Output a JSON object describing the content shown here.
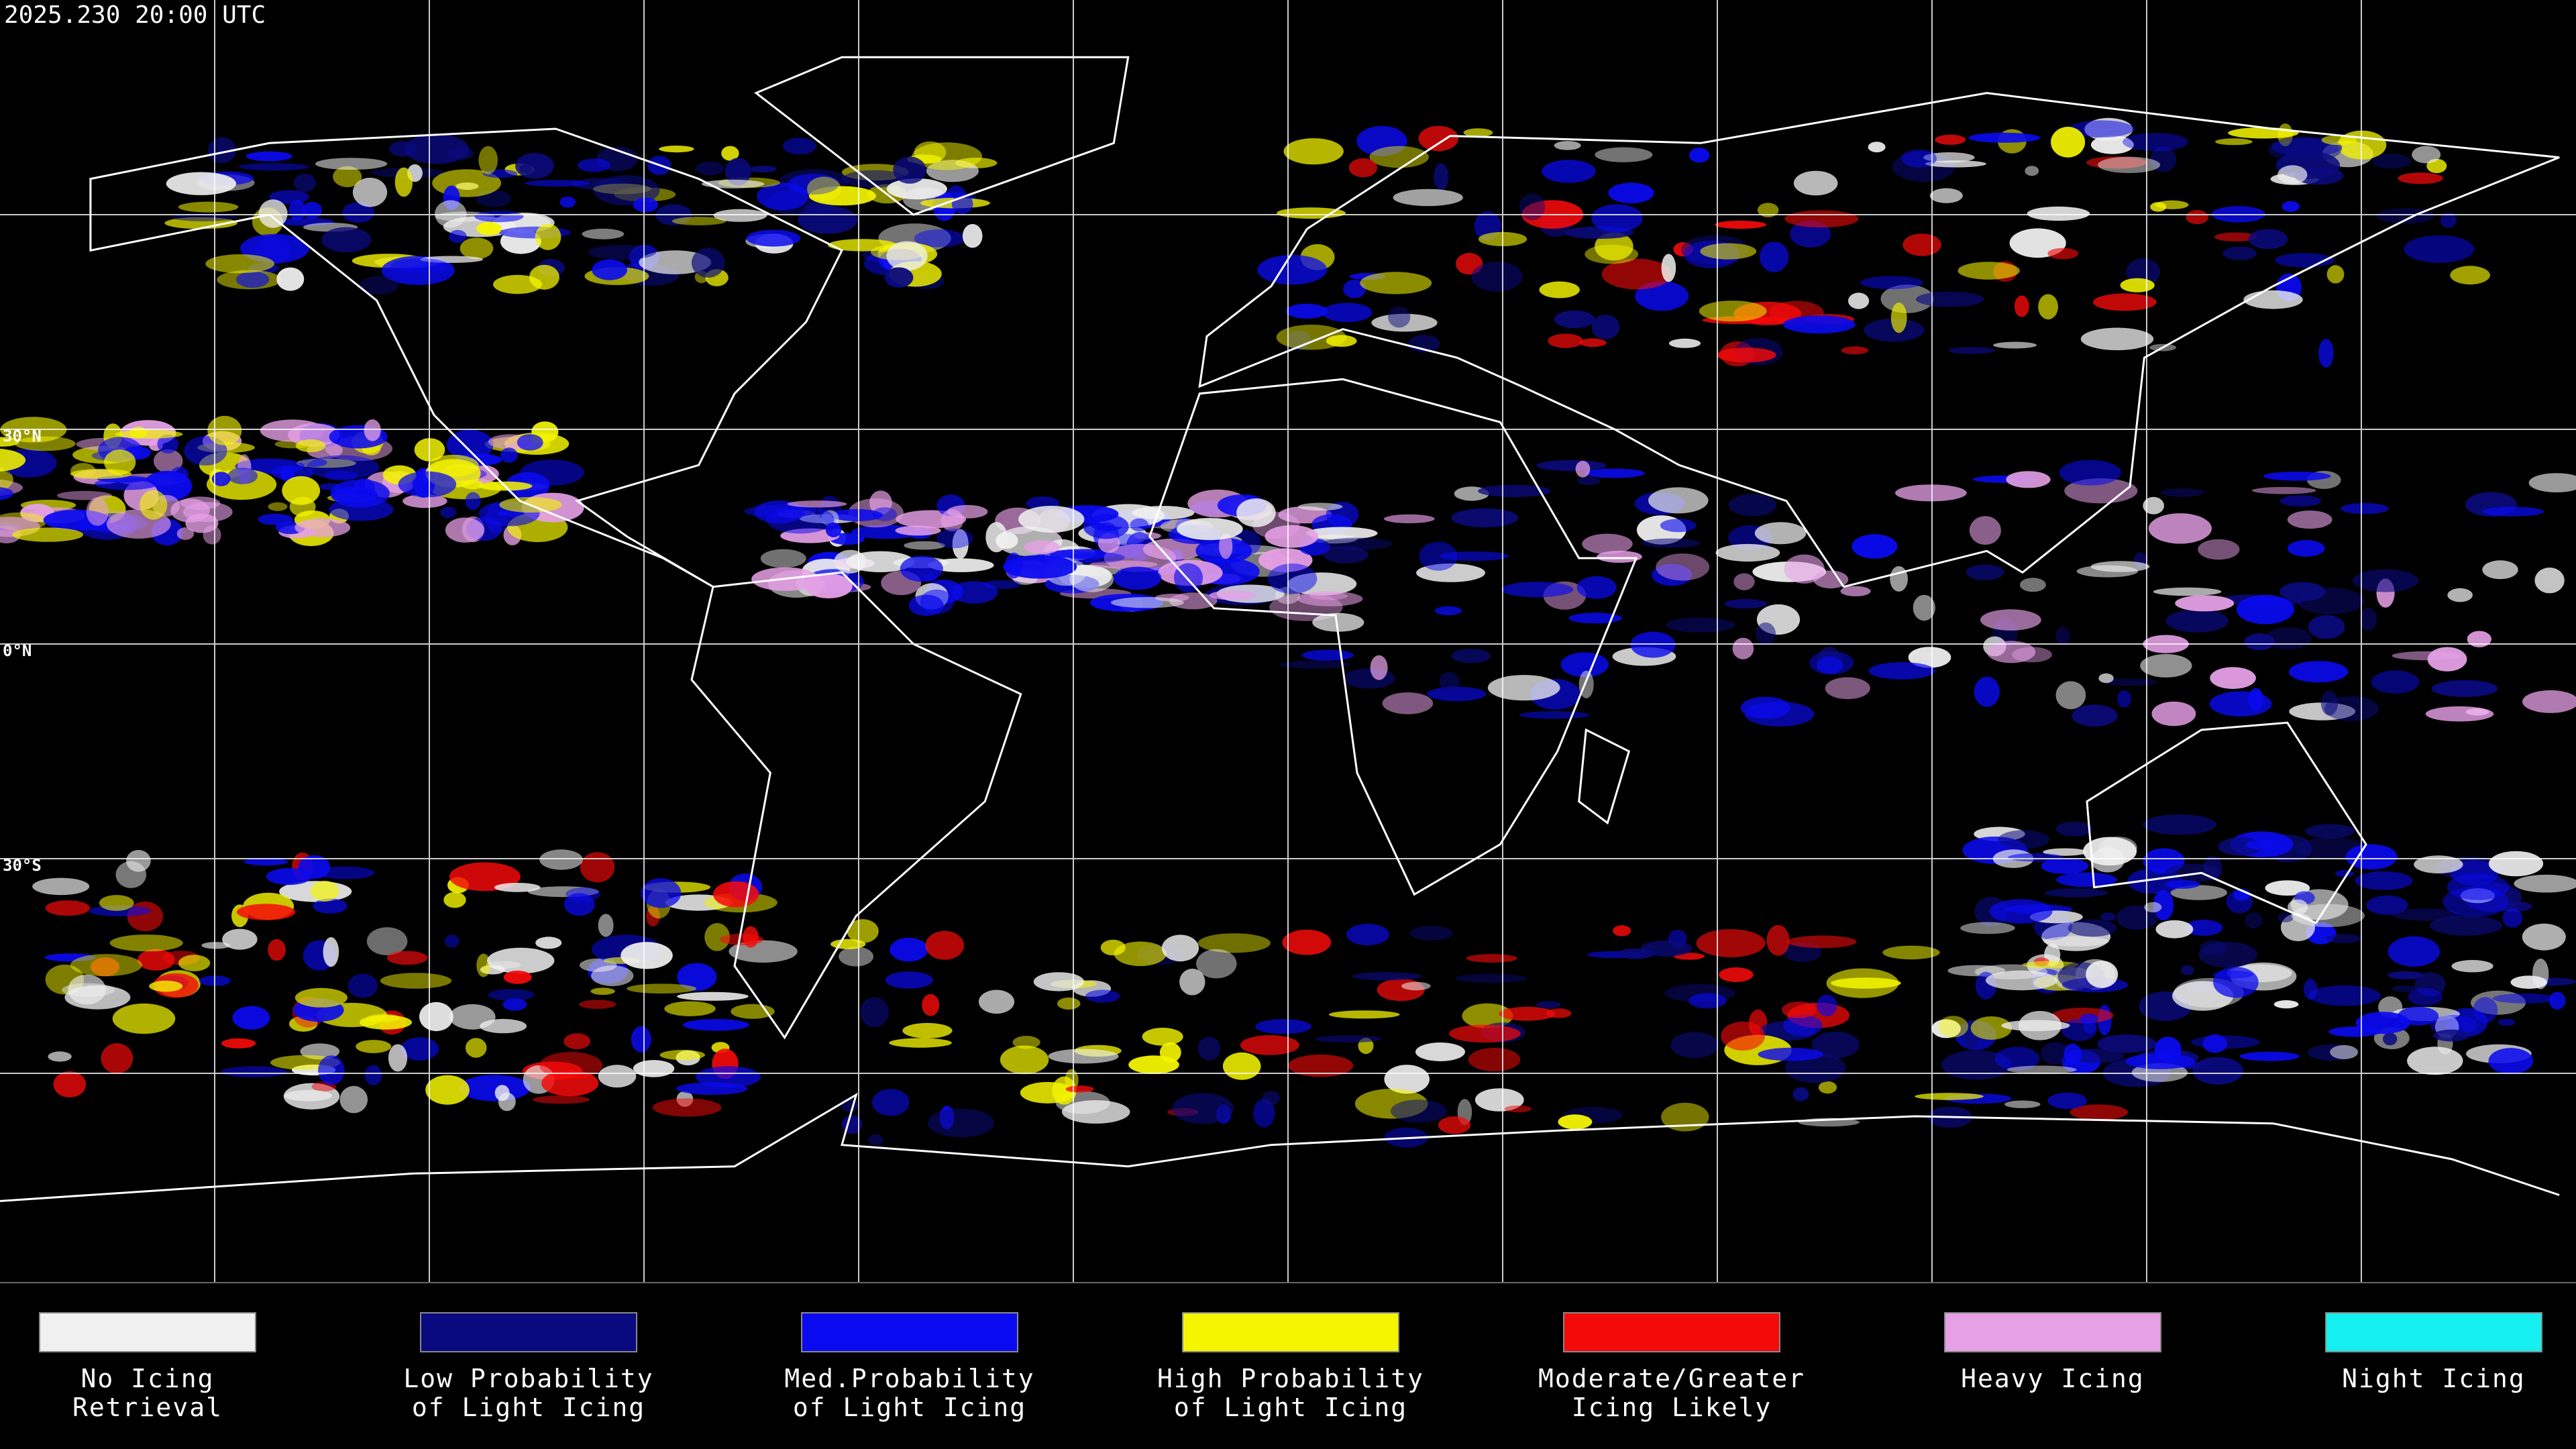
{
  "header": {
    "title": "2025.230 20:00 UTC"
  },
  "latitude_labels": [
    "30°N",
    "0°N",
    "30°S"
  ],
  "legend": [
    {
      "color": "#f0f0f0",
      "label": [
        "No Icing",
        "Retrieval"
      ]
    },
    {
      "color": "#0a0a80",
      "label": [
        "Low Probability",
        "of Light Icing"
      ]
    },
    {
      "color": "#0a0af0",
      "label": [
        "Med.Probability",
        "of Light Icing"
      ]
    },
    {
      "color": "#f5f500",
      "label": [
        "High Probability",
        "of Light Icing"
      ]
    },
    {
      "color": "#f50a0a",
      "label": [
        "Moderate/Greater",
        "Icing Likely"
      ]
    },
    {
      "color": "#e6a0e6",
      "label": [
        "Heavy Icing"
      ]
    },
    {
      "color": "#14f0f0",
      "label": [
        "Night Icing"
      ]
    }
  ]
}
